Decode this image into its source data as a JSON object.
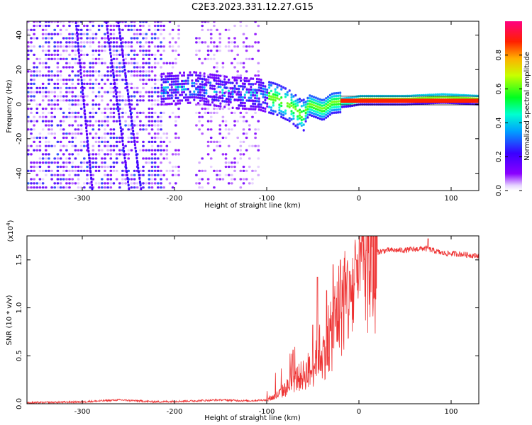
{
  "figure_title": "C2E3.2023.331.12.27.G15",
  "chart_data": [
    {
      "type": "heatmap",
      "title": "C2E3.2023.331.12.27.G15",
      "xlabel": "Height of straight line (km)",
      "ylabel": "Frequency (Hz)",
      "xlim": [
        -360,
        130
      ],
      "ylim": [
        -50,
        48
      ],
      "xticks": [
        -300,
        -200,
        -100,
        0,
        100
      ],
      "yticks": [
        -40,
        -20,
        0,
        20,
        40
      ],
      "colorbar": {
        "label": "Normalized spectral amplitude",
        "range": [
          0.0,
          1.0
        ],
        "ticks": [
          0.0,
          0.2,
          0.4,
          0.6,
          0.8
        ],
        "colormap": "rainbow (purple-blue-cyan-green-yellow-red-magenta)"
      },
      "features": {
        "noise_region_x": [
          -360,
          -110
        ],
        "band_centerline": [
          [
            -215,
            8
          ],
          [
            -180,
            9
          ],
          [
            -140,
            6
          ],
          [
            -110,
            5
          ],
          [
            -90,
            2
          ],
          [
            -75,
            -2
          ],
          [
            -62,
            -8
          ],
          [
            -55,
            -1
          ],
          [
            -40,
            -4
          ],
          [
            -30,
            0
          ],
          [
            -10,
            1
          ],
          [
            0,
            2
          ],
          [
            50,
            2
          ],
          [
            90,
            3
          ],
          [
            130,
            2
          ]
        ],
        "saturated_line": {
          "x": [
            -20,
            130
          ],
          "frequency": 2,
          "value": 1.0
        },
        "diagonal_streaks": [
          [
            -275,
            48,
            -250,
            -50
          ],
          [
            -262,
            48,
            -237,
            -50
          ],
          [
            -308,
            48,
            -290,
            -50
          ]
        ]
      }
    },
    {
      "type": "line",
      "xlabel": "Height of straight line (km)",
      "ylabel": "SNR (10 * v/v)",
      "y_multiplier": "(x10",
      "y_multiplier_exp": "4",
      "ylabel_units": ")",
      "xlim": [
        -360,
        130
      ],
      "ylim": [
        0.0,
        1.75
      ],
      "xticks": [
        -300,
        -200,
        -100,
        0,
        100
      ],
      "yticks": [
        0.0,
        0.5,
        1.0,
        1.5
      ],
      "series": [
        {
          "color": "#ee3333",
          "envelope_x": [
            -360,
            -300,
            -260,
            -220,
            -180,
            -150,
            -120,
            -100,
            -90,
            -80,
            -70,
            -60,
            -50,
            -45,
            -40,
            -35,
            -30,
            -25,
            -20,
            -15,
            -10,
            -5,
            0,
            5,
            10,
            15,
            20,
            30,
            50,
            70,
            80,
            90,
            110,
            130
          ],
          "envelope_y": [
            0.01,
            0.02,
            0.04,
            0.02,
            0.03,
            0.04,
            0.03,
            0.04,
            0.08,
            0.15,
            0.25,
            0.3,
            0.35,
            0.6,
            0.5,
            0.6,
            0.7,
            0.9,
            1.05,
            1.1,
            1.15,
            1.2,
            1.3,
            1.4,
            1.45,
            1.52,
            1.58,
            1.6,
            1.6,
            1.62,
            1.6,
            1.57,
            1.56,
            1.54
          ],
          "peaks": [
            [
              -50,
              0.82
            ],
            [
              -45,
              1.32
            ],
            [
              -35,
              1.18
            ],
            [
              -28,
              1.45
            ],
            [
              -20,
              1.5
            ],
            [
              -10,
              1.38
            ],
            [
              -3,
              1.5
            ],
            [
              2,
              1.68
            ],
            [
              8,
              1.6
            ],
            [
              75,
              1.72
            ]
          ]
        }
      ]
    }
  ]
}
